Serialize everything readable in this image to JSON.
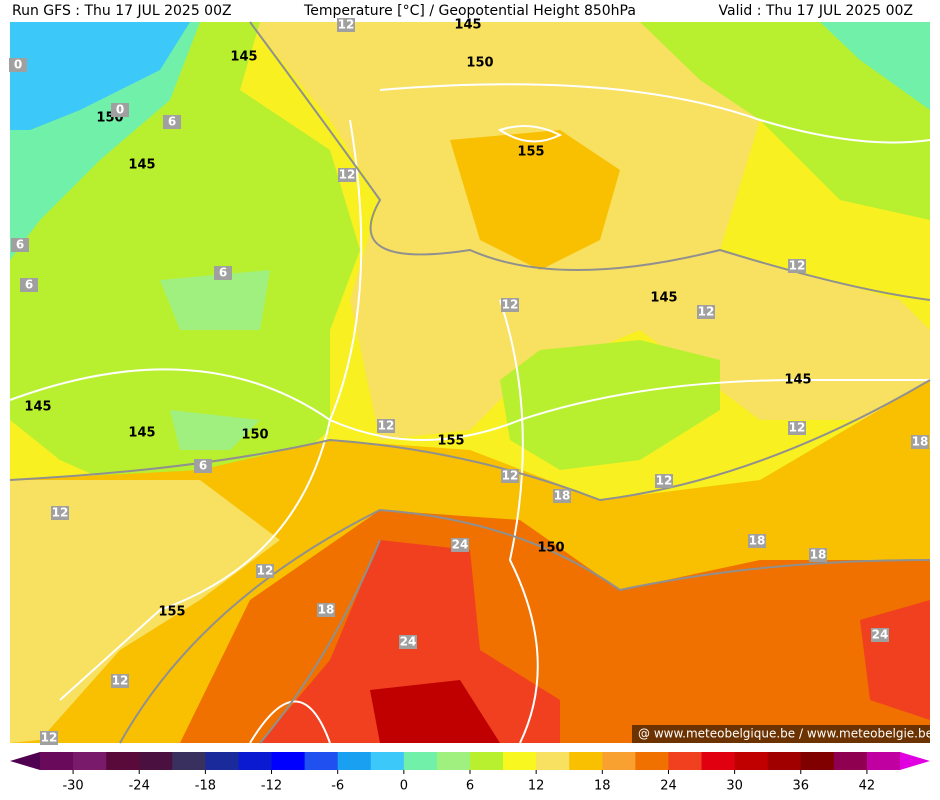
{
  "header": {
    "left": "Run GFS : Thu 17 JUL 2025 00Z",
    "center": "Temperature [°C] / Geopotential Height 850hPa",
    "right": "Valid : Thu 17 JUL 2025 00Z"
  },
  "height_labels": [
    "145",
    "145",
    "150",
    "150",
    "155",
    "145",
    "145",
    "145",
    "145",
    "150",
    "145",
    "155",
    "150",
    "155"
  ],
  "temperature_labels": [
    "12",
    "0",
    "0",
    "6",
    "12",
    "6",
    "6",
    "6",
    "12",
    "12",
    "12",
    "6",
    "12",
    "12",
    "18",
    "12",
    "12",
    "18",
    "12",
    "24",
    "18",
    "18",
    "12",
    "18",
    "24",
    "24",
    "12",
    "12"
  ],
  "watermark": "@ www.meteobelgique.be / www.meteobelgie.be",
  "colorbar": {
    "lim": [
      -33,
      45
    ],
    "ticks": [
      -30,
      -24,
      -18,
      -12,
      -6,
      0,
      6,
      12,
      18,
      24,
      30,
      36,
      42
    ],
    "colors": [
      "#6a0a5a",
      "#7a1a6a",
      "#5a0a3a",
      "#4a1040",
      "#3a3060",
      "#1a2a9a",
      "#0a1ad0",
      "#0000ff",
      "#2050f0",
      "#1aa0f0",
      "#3cc8f8",
      "#70f0a8",
      "#a0f080",
      "#b8f030",
      "#f8f820",
      "#f8e060",
      "#f8c000",
      "#f8a030",
      "#f07000",
      "#f04020",
      "#e00010",
      "#c00000",
      "#a00000",
      "#800000",
      "#900050",
      "#c000a0"
    ],
    "under": "#500050",
    "over": "#e000e0"
  }
}
